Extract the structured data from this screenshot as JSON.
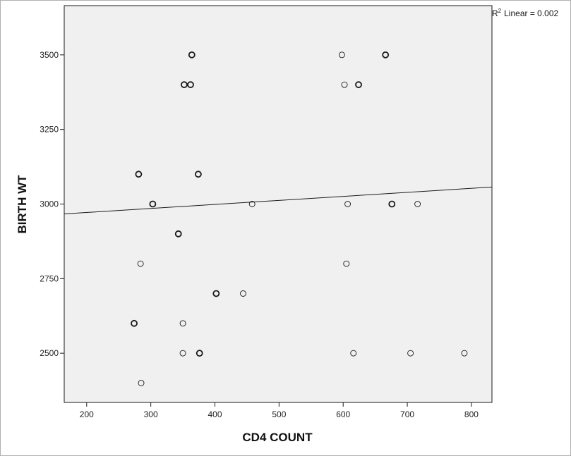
{
  "chart_data": {
    "type": "scatter",
    "xlabel": "CD4 COUNT",
    "ylabel": "BIRTH WT",
    "xlim": [
      165,
      832
    ],
    "ylim": [
      2335,
      3665
    ],
    "xticks": [
      200,
      300,
      400,
      500,
      600,
      700,
      800
    ],
    "yticks": [
      2500,
      2750,
      3000,
      3250,
      3500
    ],
    "grid": false,
    "fit_line": {
      "label": "R² Linear = 0.002",
      "r2_prefix": "R",
      "r2_sup": "2",
      "r2_text": "Linear = 0.002",
      "x": [
        165,
        832
      ],
      "y": [
        2967,
        3057
      ]
    },
    "points": [
      {
        "x": 364,
        "y": 3500,
        "n": 2
      },
      {
        "x": 598,
        "y": 3500,
        "n": 1
      },
      {
        "x": 666,
        "y": 3500,
        "n": 2
      },
      {
        "x": 352,
        "y": 3400,
        "n": 2
      },
      {
        "x": 362,
        "y": 3400,
        "n": 2
      },
      {
        "x": 602,
        "y": 3400,
        "n": 1
      },
      {
        "x": 624,
        "y": 3400,
        "n": 2
      },
      {
        "x": 281,
        "y": 3100,
        "n": 2
      },
      {
        "x": 374,
        "y": 3100,
        "n": 2
      },
      {
        "x": 303,
        "y": 3000,
        "n": 2
      },
      {
        "x": 458,
        "y": 3000,
        "n": 1
      },
      {
        "x": 607,
        "y": 3000,
        "n": 1
      },
      {
        "x": 676,
        "y": 3000,
        "n": 2
      },
      {
        "x": 716,
        "y": 3000,
        "n": 1
      },
      {
        "x": 343,
        "y": 2900,
        "n": 2
      },
      {
        "x": 284,
        "y": 2800,
        "n": 1
      },
      {
        "x": 605,
        "y": 2800,
        "n": 1
      },
      {
        "x": 402,
        "y": 2700,
        "n": 2
      },
      {
        "x": 444,
        "y": 2700,
        "n": 1
      },
      {
        "x": 274,
        "y": 2600,
        "n": 2
      },
      {
        "x": 350,
        "y": 2600,
        "n": 1
      },
      {
        "x": 350,
        "y": 2500,
        "n": 1
      },
      {
        "x": 376,
        "y": 2500,
        "n": 2
      },
      {
        "x": 616,
        "y": 2500,
        "n": 1
      },
      {
        "x": 705,
        "y": 2500,
        "n": 1
      },
      {
        "x": 789,
        "y": 2500,
        "n": 1
      },
      {
        "x": 285,
        "y": 2400,
        "n": 1
      }
    ],
    "colors": {
      "plot_background": "#f0f0f0",
      "marker_stroke": "#1a1a1a",
      "line": "#1a1a1a"
    }
  }
}
